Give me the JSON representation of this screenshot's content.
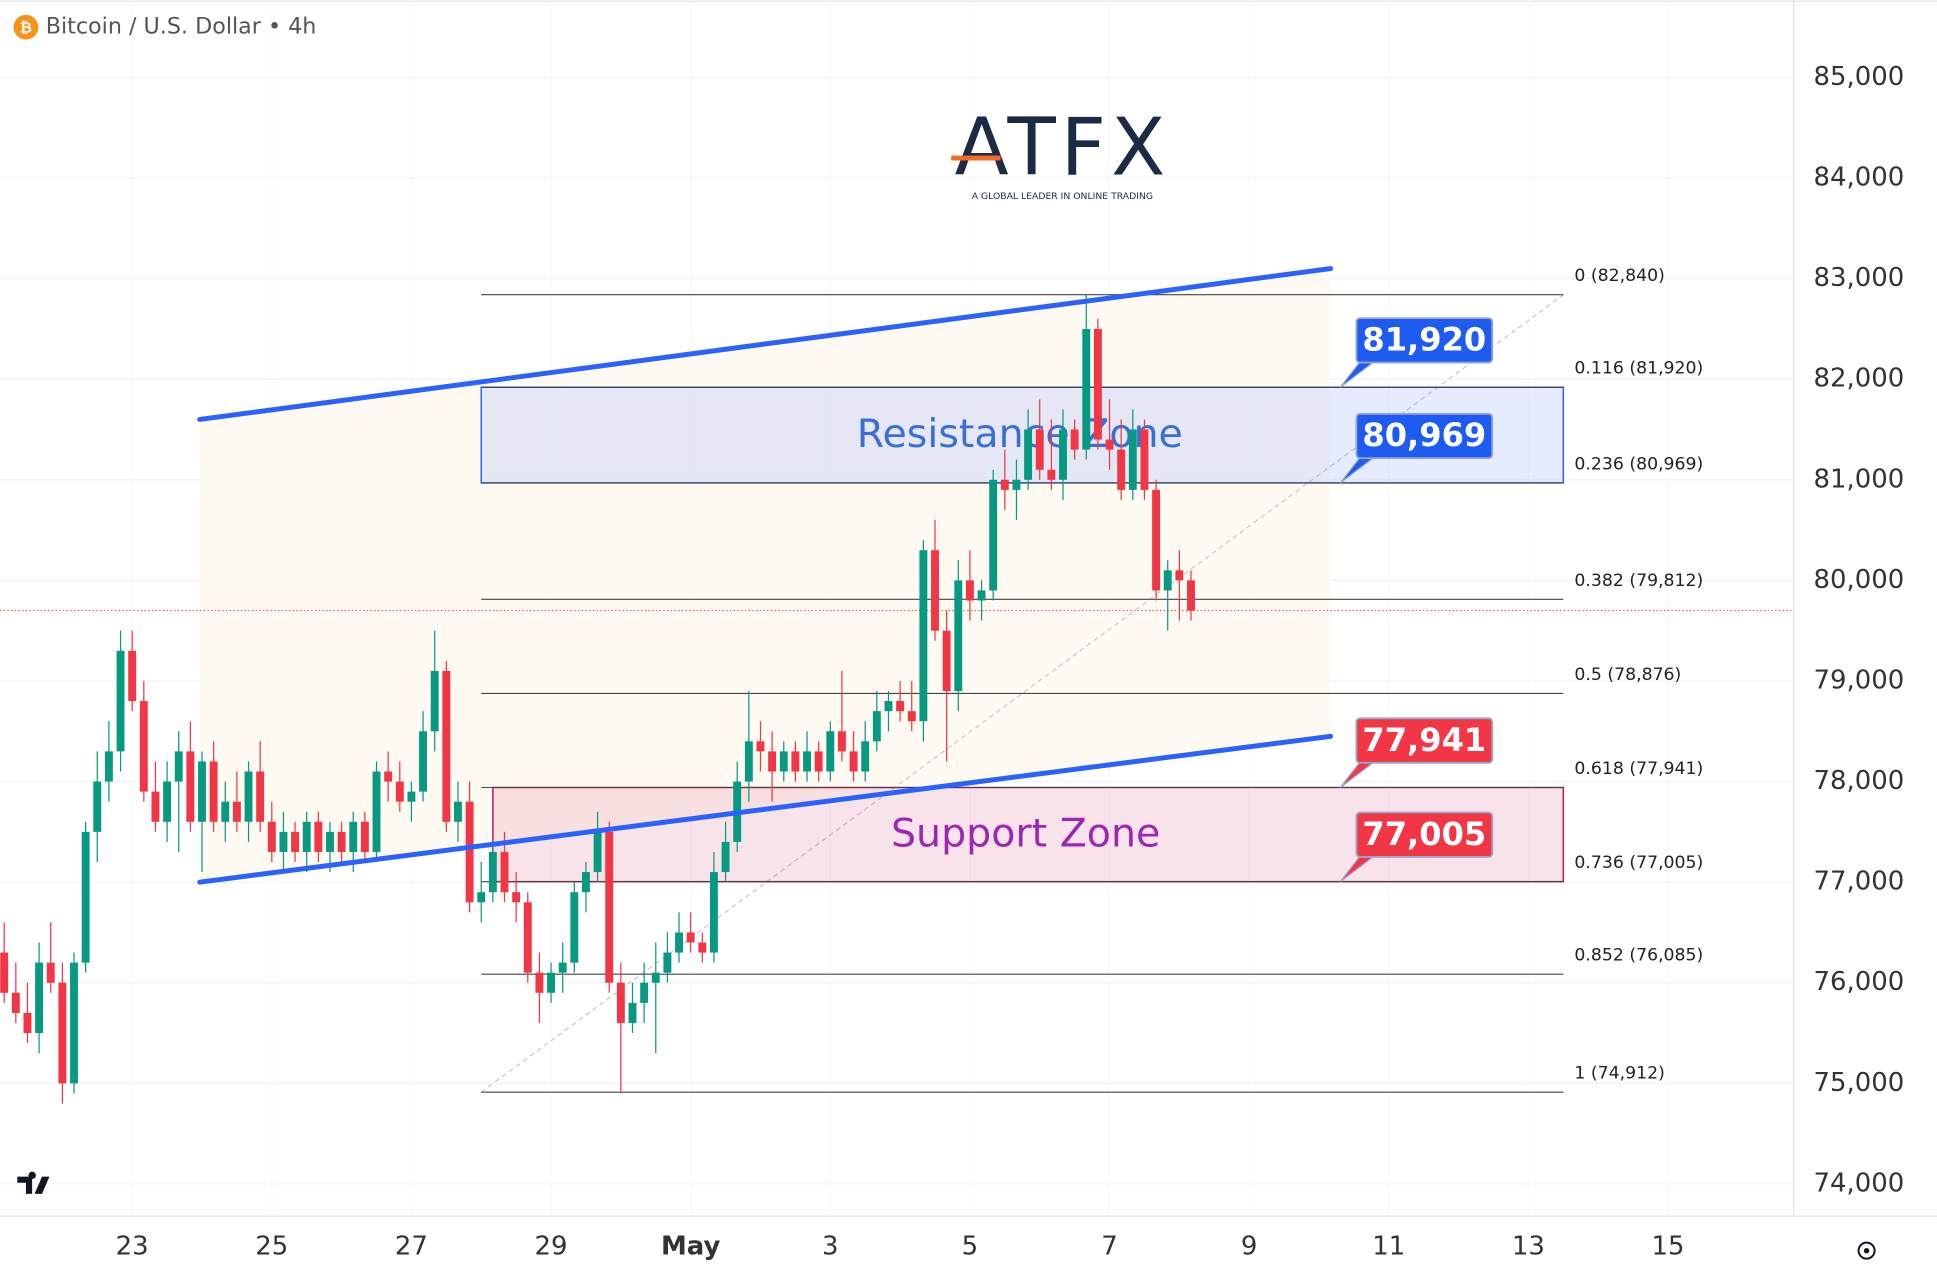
{
  "header": {
    "title": "Bitcoin / U.S. Dollar • 4h"
  },
  "logo": {
    "name": "ATFX",
    "tagline": "A GLOBAL LEADER IN ONLINE TRADING"
  },
  "chart_data": {
    "type": "candlestick",
    "up_color": "#089981",
    "down_color": "#f23645",
    "candles": [
      [
        76300,
        76600,
        75800,
        75900
      ],
      [
        75900,
        76200,
        75600,
        75700
      ],
      [
        75700,
        76000,
        75400,
        75500
      ],
      [
        75500,
        76400,
        75300,
        76200
      ],
      [
        76200,
        76600,
        75900,
        76000
      ],
      [
        76000,
        76200,
        74800,
        75000
      ],
      [
        75000,
        76300,
        74900,
        76200
      ],
      [
        76200,
        77600,
        76100,
        77500
      ],
      [
        77500,
        78300,
        77200,
        78000
      ],
      [
        78000,
        78600,
        77800,
        78300
      ],
      [
        78300,
        79500,
        78100,
        79300
      ],
      [
        79300,
        79500,
        78700,
        78800
      ],
      [
        78800,
        79000,
        77800,
        77900
      ],
      [
        77900,
        78200,
        77500,
        77600
      ],
      [
        77600,
        78200,
        77400,
        78000
      ],
      [
        78000,
        78500,
        77300,
        78300
      ],
      [
        78300,
        78600,
        77500,
        77600
      ],
      [
        77600,
        78300,
        77100,
        78200
      ],
      [
        78200,
        78400,
        77500,
        77600
      ],
      [
        77600,
        78000,
        77400,
        77800
      ],
      [
        77800,
        78100,
        77500,
        77600
      ],
      [
        77600,
        78200,
        77400,
        78100
      ],
      [
        78100,
        78400,
        77500,
        77600
      ],
      [
        77600,
        77800,
        77200,
        77300
      ],
      [
        77300,
        77700,
        77100,
        77500
      ],
      [
        77500,
        77600,
        77200,
        77300
      ],
      [
        77300,
        77700,
        77100,
        77600
      ],
      [
        77600,
        77700,
        77200,
        77300
      ],
      [
        77300,
        77600,
        77100,
        77500
      ],
      [
        77500,
        77600,
        77200,
        77300
      ],
      [
        77300,
        77700,
        77100,
        77600
      ],
      [
        77600,
        77700,
        77200,
        77300
      ],
      [
        77300,
        78200,
        77200,
        78100
      ],
      [
        78100,
        78300,
        77800,
        78000
      ],
      [
        78000,
        78200,
        77700,
        77800
      ],
      [
        77800,
        78000,
        77600,
        77900
      ],
      [
        77900,
        78700,
        77800,
        78500
      ],
      [
        78500,
        79500,
        78300,
        79100
      ],
      [
        79100,
        79200,
        77500,
        77600
      ],
      [
        77600,
        78000,
        77400,
        77800
      ],
      [
        77800,
        78000,
        76700,
        76800
      ],
      [
        76800,
        77200,
        76600,
        76900
      ],
      [
        76900,
        77400,
        76800,
        77300
      ],
      [
        77300,
        77500,
        76800,
        76900
      ],
      [
        76900,
        77100,
        76600,
        76800
      ],
      [
        76800,
        76900,
        76000,
        76100
      ],
      [
        76100,
        76300,
        75600,
        75900
      ],
      [
        75900,
        76200,
        75800,
        76100
      ],
      [
        76100,
        76400,
        75900,
        76200
      ],
      [
        76200,
        77000,
        76100,
        76900
      ],
      [
        76900,
        77200,
        76700,
        77100
      ],
      [
        77100,
        77700,
        77000,
        77500
      ],
      [
        77500,
        77600,
        75900,
        76000
      ],
      [
        76000,
        76200,
        74900,
        75600
      ],
      [
        75600,
        76000,
        75500,
        75800
      ],
      [
        75800,
        76200,
        75600,
        76000
      ],
      [
        76000,
        76400,
        75300,
        76100
      ],
      [
        76100,
        76500,
        76000,
        76300
      ],
      [
        76300,
        76700,
        76200,
        76500
      ],
      [
        76500,
        76700,
        76300,
        76400
      ],
      [
        76400,
        76500,
        76200,
        76300
      ],
      [
        76300,
        77300,
        76200,
        77100
      ],
      [
        77100,
        77600,
        77000,
        77400
      ],
      [
        77400,
        78200,
        77300,
        78000
      ],
      [
        78000,
        78900,
        77800,
        78400
      ],
      [
        78400,
        78600,
        78100,
        78300
      ],
      [
        78300,
        78500,
        77800,
        78100
      ],
      [
        78100,
        78400,
        78000,
        78300
      ],
      [
        78300,
        78400,
        78000,
        78100
      ],
      [
        78100,
        78500,
        78000,
        78300
      ],
      [
        78300,
        78400,
        78000,
        78100
      ],
      [
        78100,
        78600,
        78000,
        78500
      ],
      [
        78500,
        79100,
        78200,
        78300
      ],
      [
        78300,
        78500,
        78000,
        78100
      ],
      [
        78100,
        78600,
        78000,
        78400
      ],
      [
        78400,
        78900,
        78300,
        78700
      ],
      [
        78700,
        78900,
        78500,
        78800
      ],
      [
        78800,
        79000,
        78600,
        78700
      ],
      [
        78700,
        79000,
        78500,
        78600
      ],
      [
        78600,
        80400,
        78400,
        80300
      ],
      [
        80300,
        80600,
        79400,
        79500
      ],
      [
        79500,
        79700,
        78200,
        78900
      ],
      [
        78900,
        80200,
        78700,
        80000
      ],
      [
        80000,
        80300,
        79600,
        79800
      ],
      [
        79800,
        80000,
        79600,
        79900
      ],
      [
        79900,
        81100,
        79800,
        81000
      ],
      [
        81000,
        81300,
        80700,
        80900
      ],
      [
        80900,
        81200,
        80600,
        81000
      ],
      [
        81000,
        81700,
        80900,
        81500
      ],
      [
        81500,
        81800,
        81000,
        81100
      ],
      [
        81100,
        81600,
        80900,
        81000
      ],
      [
        81000,
        81700,
        80800,
        81500
      ],
      [
        81500,
        81600,
        81200,
        81300
      ],
      [
        81300,
        82840,
        81200,
        82500
      ],
      [
        82500,
        82600,
        81300,
        81400
      ],
      [
        81400,
        81800,
        81100,
        81300
      ],
      [
        81300,
        81600,
        80800,
        80900
      ],
      [
        80900,
        81700,
        80800,
        81500
      ],
      [
        81500,
        81600,
        80800,
        80900
      ],
      [
        80900,
        81000,
        79800,
        79900
      ],
      [
        79900,
        80200,
        79500,
        80100
      ],
      [
        80100,
        80300,
        79600,
        80000
      ],
      [
        80000,
        80100,
        79600,
        79700
      ]
    ],
    "xlim": [
      -0.36,
      153.8
    ],
    "xticks": [
      {
        "value": 11,
        "label": "23"
      },
      {
        "value": 23,
        "label": "25"
      },
      {
        "value": 35,
        "label": "27"
      },
      {
        "value": 47,
        "label": "29"
      },
      {
        "value": 59,
        "label": "May"
      },
      {
        "value": 71,
        "label": "3"
      },
      {
        "value": 83,
        "label": "5"
      },
      {
        "value": 95,
        "label": "7"
      },
      {
        "value": 107,
        "label": "9"
      },
      {
        "value": 119,
        "label": "11"
      },
      {
        "value": 131,
        "label": "13"
      },
      {
        "value": 143,
        "label": "15"
      }
    ],
    "ylim": [
      73680,
      85770
    ],
    "yticks": [
      {
        "value": 74000,
        "label": "74,000"
      },
      {
        "value": 75000,
        "label": "75,000"
      },
      {
        "value": 76000,
        "label": "76,000"
      },
      {
        "value": 77000,
        "label": "77,000"
      },
      {
        "value": 78000,
        "label": "78,000"
      },
      {
        "value": 79000,
        "label": "79,000"
      },
      {
        "value": 80000,
        "label": "80,000"
      },
      {
        "value": 81000,
        "label": "81,000"
      },
      {
        "value": 82000,
        "label": "82,000"
      },
      {
        "value": 83000,
        "label": "83,000"
      },
      {
        "value": 84000,
        "label": "84,000"
      },
      {
        "value": 85000,
        "label": "85,000"
      }
    ],
    "grid": true,
    "trendlines": [
      {
        "x": [
          16.8,
          114
        ],
        "y": [
          81600,
          83100
        ],
        "color": "#2962ff"
      },
      {
        "x": [
          16.8,
          114
        ],
        "y": [
          77000,
          78450
        ],
        "color": "#2962ff"
      }
    ],
    "fibonacci": {
      "x": [
        41,
        134
      ],
      "levels": [
        {
          "value": 82840,
          "label": "0 (82,840)"
        },
        {
          "value": 81920,
          "label": "0.116 (81,920)"
        },
        {
          "value": 80969,
          "label": "0.236 (80,969)"
        },
        {
          "value": 79812,
          "label": "0.382 (79,812)"
        },
        {
          "value": 78876,
          "label": "0.5 (78,876)"
        },
        {
          "value": 77941,
          "label": "0.618 (77,941)"
        },
        {
          "value": 77005,
          "label": "0.736 (77,005)"
        },
        {
          "value": 76085,
          "label": "0.852 (76,085)"
        },
        {
          "value": 74912,
          "label": "1 (74,912)"
        }
      ]
    },
    "zones": [
      {
        "label": "Resistance Zone",
        "range": [
          80969,
          81920
        ],
        "x": [
          41,
          134
        ],
        "color": "#2962ff",
        "text_color": "#3b6fd8"
      },
      {
        "label": "Support Zone",
        "range": [
          77005,
          77941
        ],
        "x": [
          42,
          134
        ],
        "color": "#c2185b",
        "text_color": "#9c27b0"
      }
    ],
    "price_labels": [
      {
        "value": 81920,
        "label": "81,920",
        "color": "#1e5bf0"
      },
      {
        "value": 80969,
        "label": "80,969",
        "color": "#1e5bf0"
      },
      {
        "value": 77941,
        "label": "77,941",
        "color": "#f23645"
      },
      {
        "value": 77005,
        "label": "77,005",
        "color": "#f23645"
      }
    ]
  }
}
